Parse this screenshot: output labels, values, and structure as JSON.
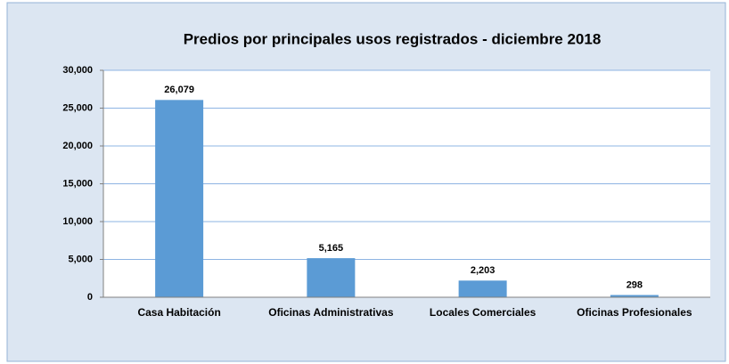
{
  "chart_data": {
    "type": "bar",
    "title": "Predios por principales usos registrados -  diciembre 2018",
    "categories": [
      "Casa Habitación",
      "Oficinas Administrativas",
      "Locales Comerciales",
      "Oficinas Profesionales"
    ],
    "values": [
      26079,
      5165,
      2203,
      298
    ],
    "value_labels": [
      "26,079",
      "5,165",
      "2,203",
      "298"
    ],
    "color": "#5b9bd5",
    "ylim": [
      0,
      30000
    ],
    "yticks": [
      0,
      {
        "value": 5000,
        "label": "5,000"
      },
      {
        "value": 10000,
        "label": "10,000"
      },
      {
        "value": 15000,
        "label": "15,000"
      },
      {
        "value": 20000,
        "label": "20,000"
      },
      {
        "value": 25000,
        "label": "25,000"
      },
      {
        "value": 30000,
        "label": "30,000"
      }
    ],
    "grid": true
  }
}
